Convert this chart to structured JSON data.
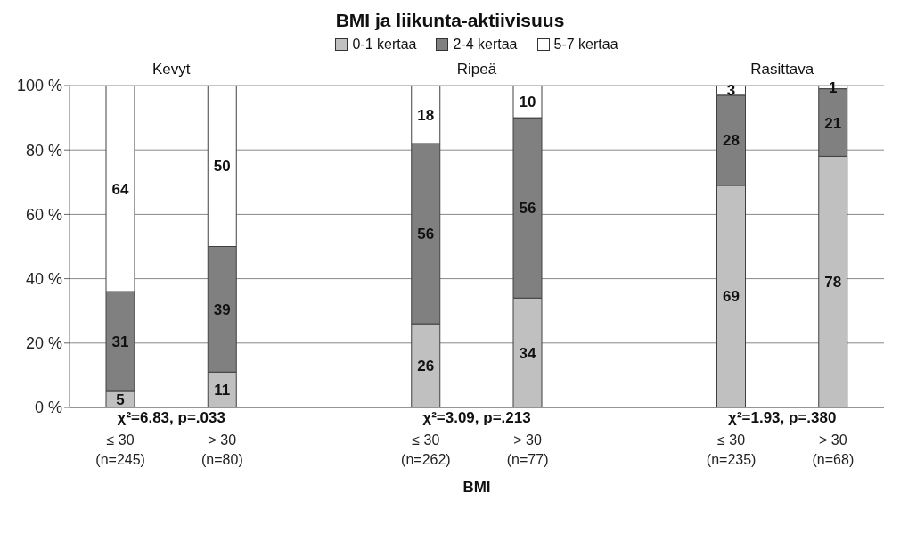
{
  "chart_data": {
    "type": "bar",
    "title": "BMI ja liikunta-aktiivisuus",
    "stacked": true,
    "categories": [
      "≤ 30\n(n=245)",
      "> 30\n(n=80)",
      null,
      "≤ 30\n(n=262)",
      "> 30\n(n=77)",
      null,
      "≤ 30\n(n=235)",
      "> 30\n(n=68)"
    ],
    "series": [
      {
        "name": "0-1 kertaa",
        "color": "#c0c0c0",
        "values": [
          5,
          11,
          null,
          26,
          34,
          null,
          69,
          78
        ]
      },
      {
        "name": "2-4 kertaa",
        "color": "#808080",
        "values": [
          31,
          39,
          null,
          56,
          56,
          null,
          28,
          21
        ]
      },
      {
        "name": "5-7 kertaa",
        "color": "#ffffff",
        "values": [
          64,
          50,
          null,
          18,
          10,
          null,
          3,
          1
        ]
      }
    ],
    "ylim": [
      0,
      100
    ],
    "yticks": [
      {
        "value": 0,
        "label": "0 %"
      },
      {
        "value": 20,
        "label": "20 %"
      },
      {
        "value": 40,
        "label": "40 %"
      },
      {
        "value": 60,
        "label": "60 %"
      },
      {
        "value": 80,
        "label": "80 %"
      },
      {
        "value": 100,
        "label": "100 %"
      }
    ],
    "xlabel": "BMI",
    "grid": "y",
    "legend": "top",
    "data_labels": true,
    "annotations": [
      "Kevyt",
      "Ripeä",
      "Rasittava",
      "χ²=6.83, p=.033",
      "χ²=3.09, p=.213",
      "χ²=1.93, p=.380"
    ]
  }
}
